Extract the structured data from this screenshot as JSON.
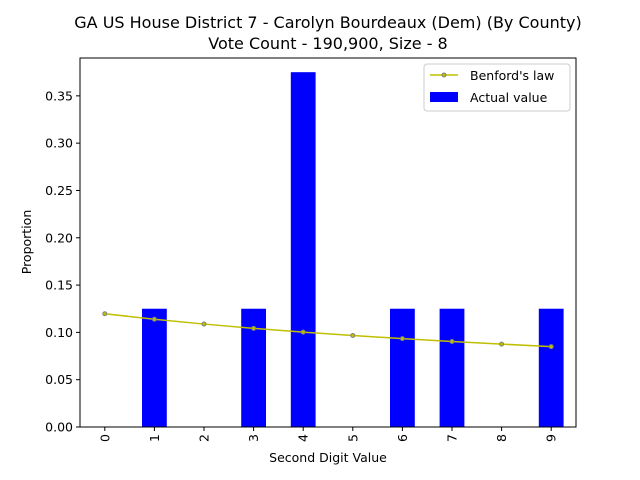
{
  "chart_data": {
    "type": "bar",
    "title_line1": "GA US House District 7 - Carolyn Bourdeaux (Dem) (By County)",
    "title_line2": "Vote Count - 190,900, Size - 8",
    "xlabel": "Second Digit Value",
    "ylabel": "Proportion",
    "categories": [
      "0",
      "1",
      "2",
      "3",
      "4",
      "5",
      "6",
      "7",
      "8",
      "9"
    ],
    "ylim": [
      0,
      0.39
    ],
    "yticks": [
      "0.00",
      "0.05",
      "0.10",
      "0.15",
      "0.20",
      "0.25",
      "0.30",
      "0.35"
    ],
    "legend_position": "top-right",
    "grid": false,
    "series": [
      {
        "name": "Actual value",
        "kind": "bar",
        "color": "#0000ff",
        "values": [
          0,
          0.125,
          0,
          0.125,
          0.375,
          0,
          0.125,
          0.125,
          0,
          0.125
        ]
      },
      {
        "name": "Benford's law",
        "kind": "line",
        "color": "#bfbf00",
        "marker_color": "#808080",
        "values": [
          0.1197,
          0.1139,
          0.1088,
          0.1043,
          0.1003,
          0.0967,
          0.0934,
          0.0904,
          0.0876,
          0.085
        ]
      }
    ]
  }
}
